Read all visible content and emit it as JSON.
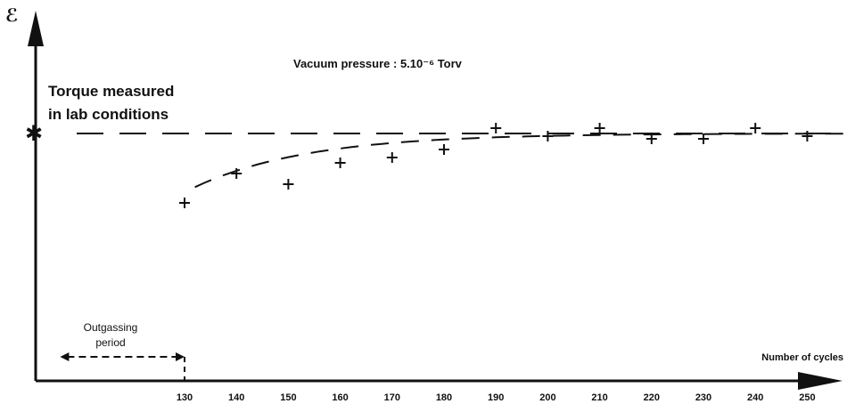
{
  "chart_data": {
    "type": "scatter",
    "title": "Vacuum pressure  :  5.10⁻⁶ Torv",
    "ylabel": "ℰ",
    "xlabel": "Number of cycles",
    "x_ticks": [
      130,
      140,
      150,
      160,
      170,
      180,
      190,
      200,
      210,
      220,
      230,
      240,
      250
    ],
    "xlim": [
      100,
      265
    ],
    "y_unlabeled": true,
    "reference": {
      "label_line1": "Torque measured",
      "label_line2": "in lab conditions",
      "value": 1.0
    },
    "outgassing": {
      "label_line1": "Outgassing",
      "label_line2": "period",
      "start": 100,
      "end": 130
    },
    "series": [
      {
        "marker": "+",
        "points": [
          [
            130,
            0.74
          ],
          [
            140,
            0.85
          ],
          [
            150,
            0.81
          ],
          [
            160,
            0.89
          ],
          [
            170,
            0.91
          ],
          [
            180,
            0.94
          ],
          [
            190,
            1.02
          ],
          [
            200,
            0.99
          ],
          [
            210,
            1.02
          ],
          [
            220,
            0.98
          ],
          [
            230,
            0.98
          ],
          [
            240,
            1.02
          ],
          [
            250,
            0.99
          ]
        ]
      }
    ],
    "grid": false
  }
}
